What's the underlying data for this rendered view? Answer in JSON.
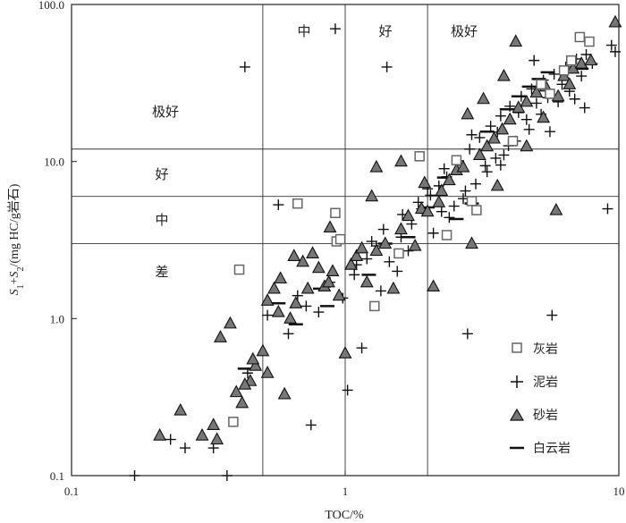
{
  "chart_data": {
    "type": "scatter",
    "xscale": "log",
    "yscale": "log",
    "xlim": [
      0.1,
      10
    ],
    "ylim": [
      0.1,
      100
    ],
    "xticks": [
      "0.1",
      "1",
      "10"
    ],
    "yticks": [
      "0.1",
      "1.0",
      "10.0",
      "100.0"
    ],
    "xlabel": "TOC/%",
    "ylabel": "S1+S2/(mg HC/g岩石)",
    "ylabel_parts": {
      "s": "S",
      "sub1": "1",
      "plus": "+",
      "sub2": "2",
      "rest": "/(mg HC/g岩石)"
    },
    "grid": false,
    "x_thresholds": [
      0.5,
      1,
      2
    ],
    "y_thresholds": [
      3,
      6,
      12
    ],
    "top_grades": [
      "中",
      "好",
      "极好"
    ],
    "left_grades": [
      "极好",
      "好",
      "中",
      "差"
    ],
    "legend": {
      "position": "bottom-right",
      "entries": [
        "灰岩",
        "泥岩",
        "砂岩",
        "白云岩"
      ]
    },
    "series": [
      {
        "name": "灰岩",
        "marker": "square",
        "points": [
          [
            0.41,
            2.05
          ],
          [
            0.67,
            5.4
          ],
          [
            0.92,
            4.7
          ],
          [
            0.93,
            3.1
          ],
          [
            1.28,
            1.2
          ],
          [
            1.57,
            2.6
          ],
          [
            2.55,
            10.2
          ],
          [
            3.02,
            4.9
          ],
          [
            7.2,
            62
          ],
          [
            7.8,
            58
          ],
          [
            0.39,
            0.22
          ],
          [
            2.35,
            3.4
          ],
          [
            5.2,
            31
          ],
          [
            6.3,
            38
          ],
          [
            0.96,
            3.2
          ],
          [
            1.87,
            10.8
          ],
          [
            2.9,
            5.6
          ],
          [
            4.1,
            13.5
          ],
          [
            5.6,
            27
          ],
          [
            6.7,
            44
          ]
        ]
      },
      {
        "name": "泥岩",
        "marker": "plus",
        "points": [
          [
            0.17,
            0.1
          ],
          [
            0.37,
            0.1
          ],
          [
            0.43,
            40
          ],
          [
            0.57,
            5.3
          ],
          [
            0.92,
            70
          ],
          [
            1.42,
            40
          ],
          [
            3.7,
            9.5
          ],
          [
            5.7,
            1.05
          ],
          [
            9.1,
            5.0
          ],
          [
            9.4,
            55
          ],
          [
            9.7,
            50
          ],
          [
            4.9,
            44
          ],
          [
            6.9,
            25
          ],
          [
            2.8,
            0.8
          ],
          [
            1.02,
            0.35
          ],
          [
            0.75,
            0.21
          ],
          [
            0.33,
            0.15
          ],
          [
            0.26,
            0.15
          ],
          [
            0.23,
            0.17
          ],
          [
            0.44,
            0.45
          ],
          [
            0.52,
            1.05
          ],
          [
            0.67,
            1.4
          ],
          [
            0.8,
            1.1
          ],
          [
            0.88,
            1.7
          ],
          [
            1.08,
            1.9
          ],
          [
            1.2,
            2.4
          ],
          [
            1.3,
            2.9
          ],
          [
            1.45,
            2.3
          ],
          [
            1.6,
            3.3
          ],
          [
            1.75,
            4.0
          ],
          [
            1.9,
            5.0
          ],
          [
            2.05,
            6.1
          ],
          [
            2.2,
            7.0
          ],
          [
            2.35,
            8.0
          ],
          [
            2.6,
            10.1
          ],
          [
            2.85,
            12.0
          ],
          [
            3.1,
            14.2
          ],
          [
            3.4,
            16.8
          ],
          [
            3.7,
            19.5
          ],
          [
            4.0,
            22.5
          ],
          [
            4.4,
            26.0
          ],
          [
            4.8,
            29.0
          ],
          [
            5.3,
            33.0
          ],
          [
            5.8,
            36.0
          ],
          [
            6.4,
            40.0
          ],
          [
            7.0,
            45.0
          ],
          [
            7.6,
            48.0
          ],
          [
            1.15,
            0.65
          ],
          [
            1.35,
            1.5
          ],
          [
            1.55,
            2.0
          ],
          [
            1.7,
            2.7
          ],
          [
            2.1,
            3.5
          ],
          [
            2.4,
            4.4
          ],
          [
            2.7,
            5.8
          ],
          [
            3.0,
            7.2
          ],
          [
            3.3,
            8.6
          ],
          [
            3.8,
            11.0
          ],
          [
            4.2,
            13.5
          ],
          [
            4.7,
            16.0
          ],
          [
            5.2,
            20.0
          ],
          [
            6.0,
            24.0
          ],
          [
            6.6,
            28.0
          ],
          [
            0.62,
            0.8
          ],
          [
            0.72,
            1.2
          ],
          [
            0.98,
            1.35
          ],
          [
            1.1,
            2.2
          ],
          [
            1.25,
            3.1
          ],
          [
            1.38,
            3.7
          ],
          [
            1.62,
            4.6
          ],
          [
            1.85,
            5.5
          ],
          [
            2.0,
            6.7
          ],
          [
            2.25,
            4.8
          ],
          [
            2.5,
            5.2
          ],
          [
            2.75,
            6.5
          ],
          [
            3.25,
            9.4
          ],
          [
            3.55,
            10.5
          ],
          [
            3.95,
            12.6
          ],
          [
            4.6,
            18.5
          ],
          [
            5.0,
            23.5
          ],
          [
            5.5,
            25.5
          ],
          [
            6.2,
            31.0
          ],
          [
            7.3,
            35.0
          ],
          [
            8.0,
            42.0
          ],
          [
            2.3,
            9.0
          ],
          [
            2.9,
            14.8
          ],
          [
            3.6,
            15.4
          ],
          [
            4.3,
            20.5
          ],
          [
            5.6,
            15.5
          ],
          [
            7.5,
            22.0
          ]
        ]
      },
      {
        "name": "砂岩",
        "marker": "triangle",
        "points": [
          [
            0.21,
            0.18
          ],
          [
            0.25,
            0.26
          ],
          [
            0.3,
            0.18
          ],
          [
            0.33,
            0.21
          ],
          [
            0.34,
            0.17
          ],
          [
            0.35,
            0.76
          ],
          [
            0.38,
            0.93
          ],
          [
            0.4,
            0.34
          ],
          [
            0.42,
            0.29
          ],
          [
            0.45,
            0.4
          ],
          [
            0.47,
            0.5
          ],
          [
            0.5,
            0.62
          ],
          [
            0.52,
            1.3
          ],
          [
            0.55,
            1.55
          ],
          [
            0.58,
            1.8
          ],
          [
            0.6,
            0.33
          ],
          [
            0.63,
            1.0
          ],
          [
            0.66,
            1.25
          ],
          [
            0.7,
            2.3
          ],
          [
            0.73,
            1.55
          ],
          [
            0.76,
            2.6
          ],
          [
            0.8,
            2.1
          ],
          [
            0.84,
            1.6
          ],
          [
            0.87,
            1.7
          ],
          [
            0.9,
            2.0
          ],
          [
            0.95,
            1.4
          ],
          [
            1.0,
            0.6
          ],
          [
            1.05,
            2.2
          ],
          [
            1.1,
            2.5
          ],
          [
            1.15,
            2.8
          ],
          [
            1.2,
            1.7
          ],
          [
            1.3,
            2.7
          ],
          [
            1.4,
            3.0
          ],
          [
            1.5,
            1.55
          ],
          [
            1.6,
            3.7
          ],
          [
            1.7,
            4.5
          ],
          [
            1.8,
            2.9
          ],
          [
            1.9,
            5.0
          ],
          [
            2.0,
            4.8
          ],
          [
            2.1,
            1.6
          ],
          [
            2.25,
            6.5
          ],
          [
            2.4,
            7.6
          ],
          [
            2.55,
            8.8
          ],
          [
            2.7,
            9.2
          ],
          [
            2.9,
            3.0
          ],
          [
            3.1,
            11.0
          ],
          [
            3.3,
            12.5
          ],
          [
            3.5,
            14.0
          ],
          [
            3.75,
            16.0
          ],
          [
            4.0,
            18.5
          ],
          [
            4.3,
            22.0
          ],
          [
            4.6,
            24.0
          ],
          [
            5.0,
            27.5
          ],
          [
            5.4,
            30.0
          ],
          [
            5.9,
            4.9
          ],
          [
            6.3,
            35.0
          ],
          [
            6.8,
            39.0
          ],
          [
            7.3,
            42.0
          ],
          [
            7.9,
            44.0
          ],
          [
            9.7,
            77.0
          ],
          [
            4.2,
            58.0
          ],
          [
            3.8,
            35.0
          ],
          [
            3.2,
            25.0
          ],
          [
            2.8,
            20.0
          ],
          [
            1.6,
            10.0
          ],
          [
            1.25,
            6.0
          ],
          [
            0.88,
            3.8
          ],
          [
            0.65,
            2.5
          ],
          [
            0.57,
            1.1
          ],
          [
            0.52,
            0.45
          ],
          [
            0.46,
            0.55
          ],
          [
            0.43,
            0.38
          ],
          [
            1.3,
            9.2
          ],
          [
            1.95,
            7.3
          ],
          [
            2.2,
            5.5
          ],
          [
            3.6,
            7.0
          ],
          [
            4.6,
            12.5
          ],
          [
            5.3,
            19.0
          ],
          [
            6.0,
            26.0
          ],
          [
            6.6,
            31.0
          ]
        ]
      },
      {
        "name": "白云岩",
        "marker": "dash",
        "points": [
          [
            0.43,
            0.48
          ],
          [
            0.57,
            1.25
          ],
          [
            0.66,
            0.92
          ],
          [
            0.81,
            1.55
          ],
          [
            0.86,
            1.2
          ],
          [
            1.22,
            1.9
          ],
          [
            1.4,
            3.0
          ],
          [
            1.7,
            3.3
          ],
          [
            2.0,
            5.1
          ],
          [
            2.55,
            4.3
          ],
          [
            2.9,
            5.4
          ],
          [
            3.3,
            15.5
          ],
          [
            3.9,
            21.5
          ],
          [
            4.3,
            26.0
          ],
          [
            4.7,
            30.0
          ],
          [
            5.1,
            33.5
          ],
          [
            5.5,
            37.0
          ],
          [
            6.5,
            38.0
          ],
          [
            7.3,
            39.0
          ],
          [
            2.3,
            7.9
          ]
        ]
      }
    ]
  }
}
